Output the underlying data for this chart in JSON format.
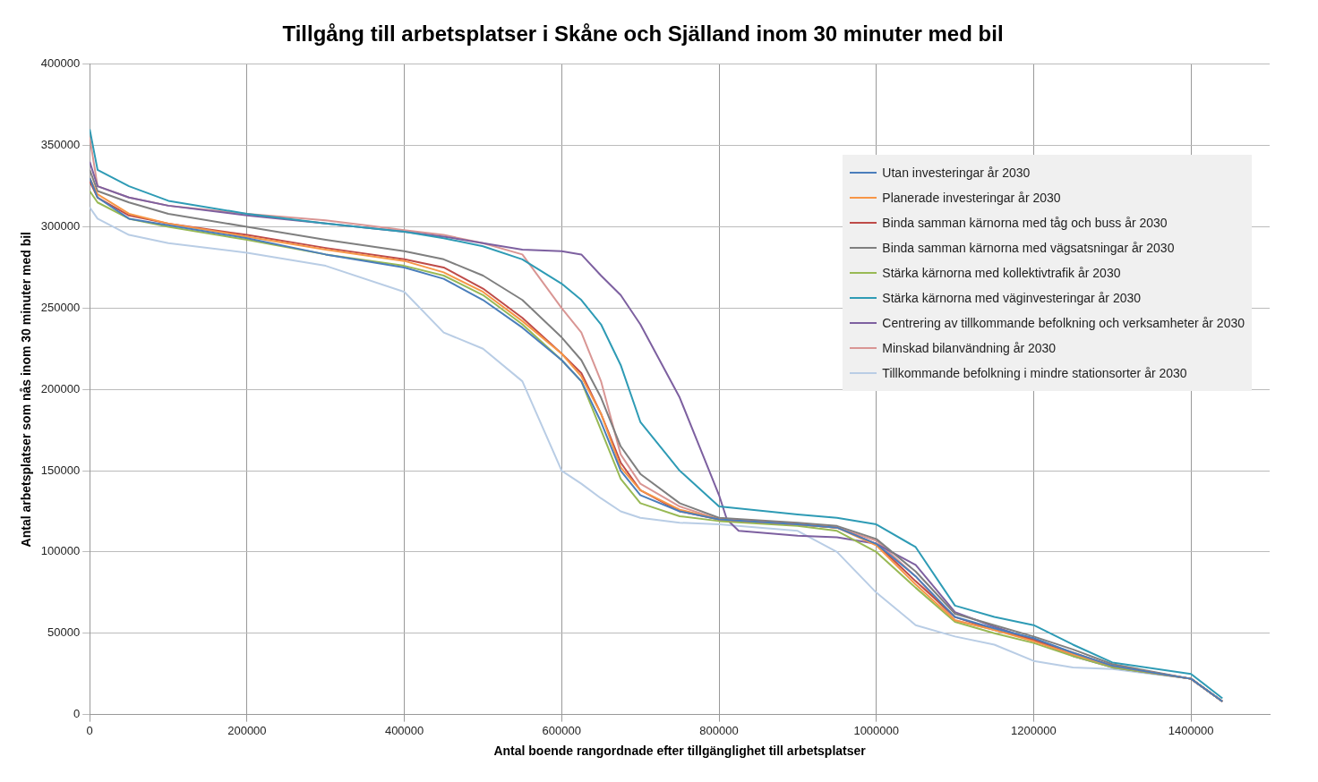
{
  "chart_data": {
    "type": "line",
    "title": "Tillgång till arbetsplatser i Skåne och Själland inom 30 minuter med bil",
    "xlabel": "Antal boende rangordnade efter tillgänglighet till arbetsplatser",
    "ylabel": "Antal arbetsplatser som nås inom 30 minuter med bil",
    "x": [
      0,
      10000,
      50000,
      100000,
      200000,
      300000,
      400000,
      450000,
      500000,
      550000,
      600000,
      625000,
      650000,
      675000,
      700000,
      750000,
      800000,
      900000,
      950000,
      1000000,
      1050000,
      1100000,
      1150000,
      1200000,
      1250000,
      1300000,
      1400000,
      1440000
    ],
    "series": [
      {
        "name": "Utan investeringar år 2030",
        "color": "#4a7ebb",
        "values": [
          330000,
          318000,
          305000,
          301000,
          293000,
          283000,
          275000,
          268000,
          255000,
          238000,
          218000,
          205000,
          180000,
          150000,
          135000,
          125000,
          120000,
          117000,
          115000,
          105000,
          85000,
          60000,
          53000,
          47000,
          38000,
          30000,
          22000,
          8000
        ]
      },
      {
        "name": "Planerade investeringar år 2030",
        "color": "#f79646",
        "values": [
          330000,
          320000,
          308000,
          302000,
          294000,
          286000,
          279000,
          272000,
          260000,
          242000,
          222000,
          208000,
          185000,
          152000,
          138000,
          126000,
          120000,
          117000,
          115000,
          104000,
          80000,
          58000,
          52000,
          45000,
          37000,
          30000,
          22000,
          8000
        ]
      },
      {
        "name": "Binda samman kärnorna med tåg och buss år 2030",
        "color": "#be4b48",
        "values": [
          328000,
          318000,
          307000,
          302000,
          295000,
          287000,
          280000,
          275000,
          262000,
          244000,
          222000,
          210000,
          185000,
          155000,
          138000,
          125000,
          120000,
          117000,
          115000,
          105000,
          82000,
          60000,
          52000,
          46000,
          38000,
          30000,
          22000,
          8000
        ]
      },
      {
        "name": "Binda samman kärnorna med vägsatsningar år 2030",
        "color": "#7f7f7f",
        "values": [
          335000,
          322000,
          315000,
          308000,
          300000,
          292000,
          285000,
          280000,
          270000,
          255000,
          232000,
          218000,
          195000,
          165000,
          148000,
          130000,
          121000,
          118000,
          116000,
          108000,
          88000,
          62000,
          55000,
          48000,
          40000,
          31000,
          22000,
          8000
        ]
      },
      {
        "name": "Stärka kärnorna med kollektivtrafik år 2030",
        "color": "#98b954",
        "values": [
          322000,
          315000,
          305000,
          300000,
          292000,
          283000,
          276000,
          270000,
          258000,
          240000,
          218000,
          205000,
          175000,
          145000,
          130000,
          122000,
          119000,
          116000,
          113000,
          100000,
          78000,
          57000,
          50000,
          44000,
          36000,
          29000,
          22000,
          8000
        ]
      },
      {
        "name": "Stärka kärnorna med väginvesteringar år 2030",
        "color": "#2e9bb5",
        "values": [
          360000,
          335000,
          325000,
          316000,
          308000,
          302000,
          297000,
          293000,
          288000,
          280000,
          265000,
          255000,
          240000,
          215000,
          180000,
          150000,
          128000,
          123000,
          121000,
          117000,
          103000,
          67000,
          60000,
          55000,
          43000,
          32000,
          25000,
          10000
        ]
      },
      {
        "name": "Centrering av tillkommande befolkning och verksamheter år 2030",
        "color": "#7d60a0",
        "x": [
          0,
          10000,
          50000,
          100000,
          200000,
          300000,
          400000,
          450000,
          500000,
          550000,
          600000,
          625000,
          650000,
          675000,
          700000,
          750000,
          800000,
          810000,
          825000,
          900000,
          950000,
          1000000,
          1050000,
          1100000,
          1150000,
          1200000,
          1250000,
          1300000,
          1400000,
          1440000
        ],
        "values": [
          340000,
          325000,
          318000,
          313000,
          307000,
          302000,
          297000,
          294000,
          290000,
          286000,
          285000,
          283000,
          270000,
          258000,
          240000,
          195000,
          135000,
          120000,
          113000,
          110000,
          109000,
          105000,
          92000,
          63000,
          54000,
          46000,
          36000,
          29000,
          22000,
          8000
        ]
      },
      {
        "name": "Minskad bilanvändning år 2030",
        "color": "#d99694",
        "values": [
          355000,
          325000,
          318000,
          313000,
          308000,
          304000,
          298000,
          295000,
          290000,
          283000,
          250000,
          235000,
          205000,
          160000,
          142000,
          128000,
          120000,
          117000,
          115000,
          107000,
          85000,
          58000,
          52000,
          46000,
          37000,
          30000,
          22000,
          8000
        ]
      },
      {
        "name": "Tillkommande befolkning i mindre stationsorter år 2030",
        "color": "#b9cde5",
        "values": [
          312000,
          305000,
          295000,
          290000,
          284000,
          276000,
          260000,
          235000,
          225000,
          205000,
          150000,
          142000,
          133000,
          125000,
          121000,
          118000,
          117000,
          113000,
          100000,
          75000,
          55000,
          48000,
          43000,
          33000,
          29000,
          28000,
          22000,
          8000
        ]
      }
    ],
    "xlim": [
      0,
      1500000
    ],
    "xticks": [
      0,
      200000,
      400000,
      600000,
      800000,
      1000000,
      1200000,
      1400000
    ],
    "ylim": [
      0,
      400000
    ],
    "yticks": [
      0,
      50000,
      100000,
      150000,
      200000,
      250000,
      300000,
      350000,
      400000
    ],
    "grid": true,
    "legend": "top right",
    "marker": "none",
    "line_style": "solid"
  }
}
